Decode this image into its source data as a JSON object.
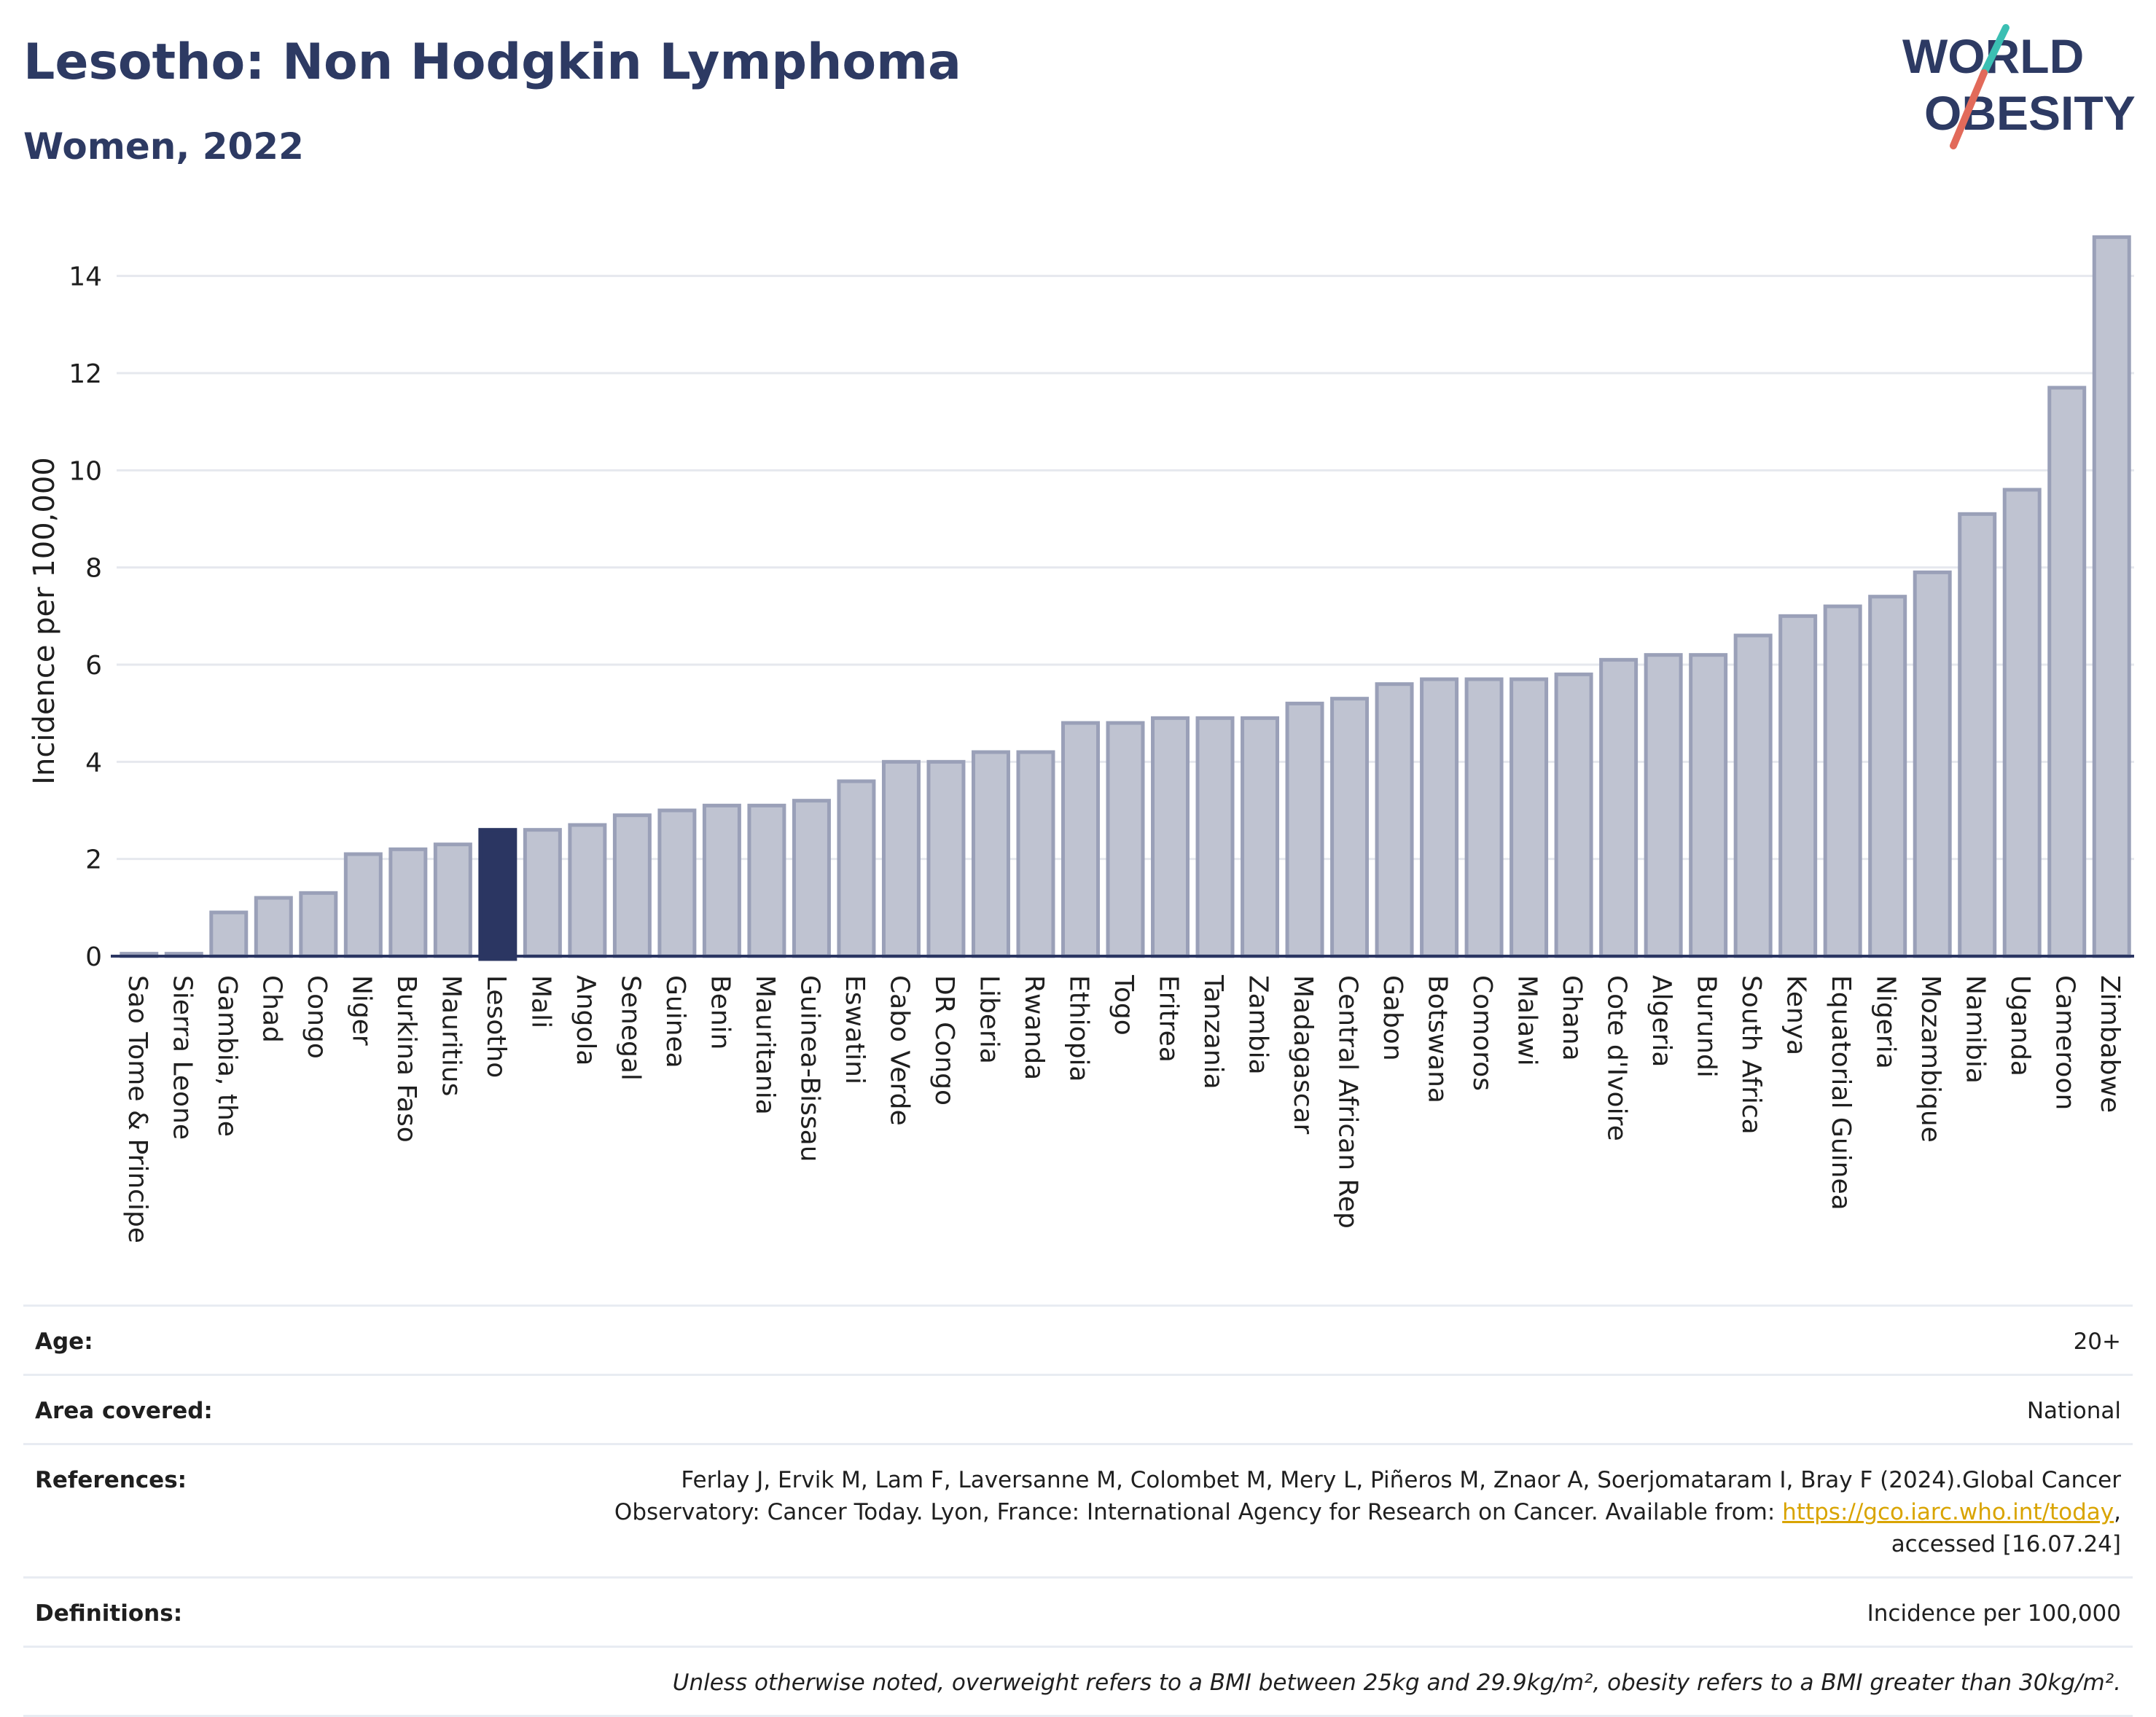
{
  "header": {
    "title": "Lesotho: Non Hodgkin Lymphoma",
    "subtitle": "Women, 2022"
  },
  "logo": {
    "line1": "WORLD",
    "line2": "OBESITY",
    "accent_colors": [
      "#3bbfb3",
      "#e26a5a"
    ],
    "text_color": "#2d3a63"
  },
  "colors": {
    "bar": "#bfc3d1",
    "bar_border": "#9aa0b8",
    "highlight": "#2b3662",
    "axis": "#2b3662",
    "grid": "#e6e8ee"
  },
  "chart_data": {
    "type": "bar",
    "ylabel": "Incidence per 100,000",
    "ylim": [
      0,
      15
    ],
    "yticks": [
      0,
      2,
      4,
      6,
      8,
      10,
      12,
      14
    ],
    "grid": true,
    "highlight": "Lesotho",
    "categories": [
      "Sao Tome & Principe",
      "Sierra Leone",
      "Gambia, the",
      "Chad",
      "Congo",
      "Niger",
      "Burkina Faso",
      "Mauritius",
      "Lesotho",
      "Mali",
      "Angola",
      "Senegal",
      "Guinea",
      "Benin",
      "Mauritania",
      "Guinea-Bissau",
      "Eswatini",
      "Cabo Verde",
      "DR Congo",
      "Liberia",
      "Rwanda",
      "Ethiopia",
      "Togo",
      "Eritrea",
      "Tanzania",
      "Zambia",
      "Madagascar",
      "Central African Rep",
      "Gabon",
      "Botswana",
      "Comoros",
      "Malawi",
      "Ghana",
      "Cote d'Ivoire",
      "Algeria",
      "Burundi",
      "South Africa",
      "Kenya",
      "Equatorial Guinea",
      "Nigeria",
      "Mozambique",
      "Namibia",
      "Uganda",
      "Cameroon",
      "Zimbabwe"
    ],
    "values": [
      0.05,
      0.05,
      0.9,
      1.2,
      1.3,
      2.1,
      2.2,
      2.3,
      2.6,
      2.6,
      2.7,
      2.9,
      3.0,
      3.1,
      3.1,
      3.2,
      3.6,
      4.0,
      4.0,
      4.2,
      4.2,
      4.8,
      4.8,
      4.9,
      4.9,
      4.9,
      5.2,
      5.3,
      5.6,
      5.7,
      5.7,
      5.7,
      5.8,
      6.1,
      6.2,
      6.2,
      6.6,
      7.0,
      7.2,
      7.4,
      7.9,
      9.1,
      9.6,
      11.7,
      14.8
    ]
  },
  "meta": {
    "age_label": "Age:",
    "age_value": "20+",
    "area_label": "Area covered:",
    "area_value": "National",
    "refs_label": "References:",
    "refs_text1": "Ferlay J, Ervik M, Lam F, Laversanne M, Colombet M, Mery L, Piñeros M, Znaor A, Soerjomataram I, Bray F (2024).Global Cancer",
    "refs_text2a": "Observatory: Cancer Today. Lyon, France: International Agency for Research on Cancer. Available from: ",
    "refs_link": "https://gco.iarc.who.int/today",
    "refs_text2b": ",",
    "refs_text3": "accessed [16.07.24]",
    "defs_label": "Definitions:",
    "defs_value": "Incidence per 100,000",
    "note": "Unless otherwise noted, overweight refers to a BMI between 25kg and 29.9kg/m², obesity refers to a BMI greater than 30kg/m²."
  }
}
